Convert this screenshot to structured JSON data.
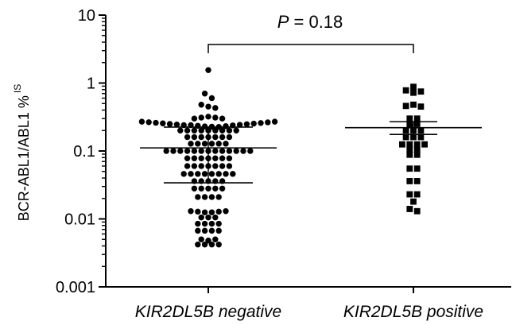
{
  "chart_data": {
    "type": "scatter",
    "subtype": "dot-plot",
    "title": "",
    "xlabel": "",
    "ylabel_main": "BCR-ABL1/ABL1 %",
    "ylabel_superscript": "IS",
    "yscale": "log",
    "ylim": [
      0.001,
      10
    ],
    "yticks": [
      {
        "value": 10,
        "label": "10"
      },
      {
        "value": 1,
        "label": "1"
      },
      {
        "value": 0.1,
        "label": "0.1"
      },
      {
        "value": 0.01,
        "label": "0.01"
      },
      {
        "value": 0.001,
        "label": "0.001"
      }
    ],
    "categories": [
      "KIR2DL5B negative",
      "KIR2DL5B positive"
    ],
    "grid": false,
    "annotation": {
      "p_symbol": "P",
      "p_rest": " = 0.18",
      "compares": [
        0,
        1
      ]
    },
    "series": [
      {
        "category": "KIR2DL5B negative",
        "marker": "circle",
        "color": "#000000",
        "mean": 0.111,
        "error_upper": 0.225,
        "error_lower": 0.034,
        "rows": [
          [
            1.55
          ],
          [
            0.7,
            0.6
          ],
          [
            0.48,
            0.45,
            0.43
          ],
          [
            0.3,
            0.31,
            0.32,
            0.31,
            0.3
          ],
          [
            0.27,
            0.265,
            0.26,
            0.255,
            0.25,
            0.245,
            0.24,
            0.24,
            0.235,
            0.23,
            0.228,
            0.226,
            0.232,
            0.238,
            0.243,
            0.248,
            0.253,
            0.258,
            0.264,
            0.27
          ],
          [
            0.2,
            0.2,
            0.2,
            0.2,
            0.2,
            0.2,
            0.2,
            0.2,
            0.2
          ],
          [
            0.16,
            0.16,
            0.16,
            0.16,
            0.16,
            0.16,
            0.16
          ],
          [
            0.128,
            0.128,
            0.128,
            0.128,
            0.128,
            0.128
          ],
          [
            0.1,
            0.1,
            0.1,
            0.1,
            0.1,
            0.1,
            0.1,
            0.1,
            0.1,
            0.1,
            0.1,
            0.1,
            0.1
          ],
          [
            0.078,
            0.078,
            0.078,
            0.078,
            0.078,
            0.078,
            0.078
          ],
          [
            0.06,
            0.06,
            0.06,
            0.06,
            0.06,
            0.06,
            0.06
          ],
          [
            0.046,
            0.046,
            0.046,
            0.046,
            0.046,
            0.046,
            0.046,
            0.046
          ],
          [
            0.036,
            0.036,
            0.036,
            0.036,
            0.036
          ],
          [
            0.028,
            0.028,
            0.028,
            0.028,
            0.028
          ],
          [
            0.021,
            0.021,
            0.021,
            0.021
          ],
          [
            0.013,
            0.0128,
            0.0125,
            0.0125,
            0.0128,
            0.013
          ],
          [
            0.0105,
            0.0105,
            0.0105
          ],
          [
            0.0085,
            0.0085,
            0.0085,
            0.0085
          ],
          [
            0.0067,
            0.0067,
            0.0067,
            0.0067
          ],
          [
            0.005,
            0.0048,
            0.005
          ],
          [
            0.0042,
            0.0042,
            0.0042,
            0.0042
          ]
        ]
      },
      {
        "category": "KIR2DL5B positive",
        "marker": "square",
        "color": "#000000",
        "mean": 0.22,
        "error_upper": 0.27,
        "error_lower": 0.175,
        "rows": [
          [
            0.88
          ],
          [
            0.78,
            0.72,
            0.75
          ],
          [
            0.46,
            0.48,
            0.45
          ],
          [
            0.3,
            0.3
          ],
          [
            0.24,
            0.25
          ],
          [
            0.2,
            0.2,
            0.2
          ],
          [
            0.16,
            0.16,
            0.16
          ],
          [
            0.125,
            0.125,
            0.125,
            0.125
          ],
          [
            0.105,
            0.105
          ],
          [
            0.088,
            0.088
          ],
          [
            0.055,
            0.055
          ],
          [
            0.036,
            0.036
          ],
          [
            0.023,
            0.023
          ],
          [
            0.018
          ],
          [
            0.014,
            0.013
          ]
        ]
      }
    ]
  }
}
